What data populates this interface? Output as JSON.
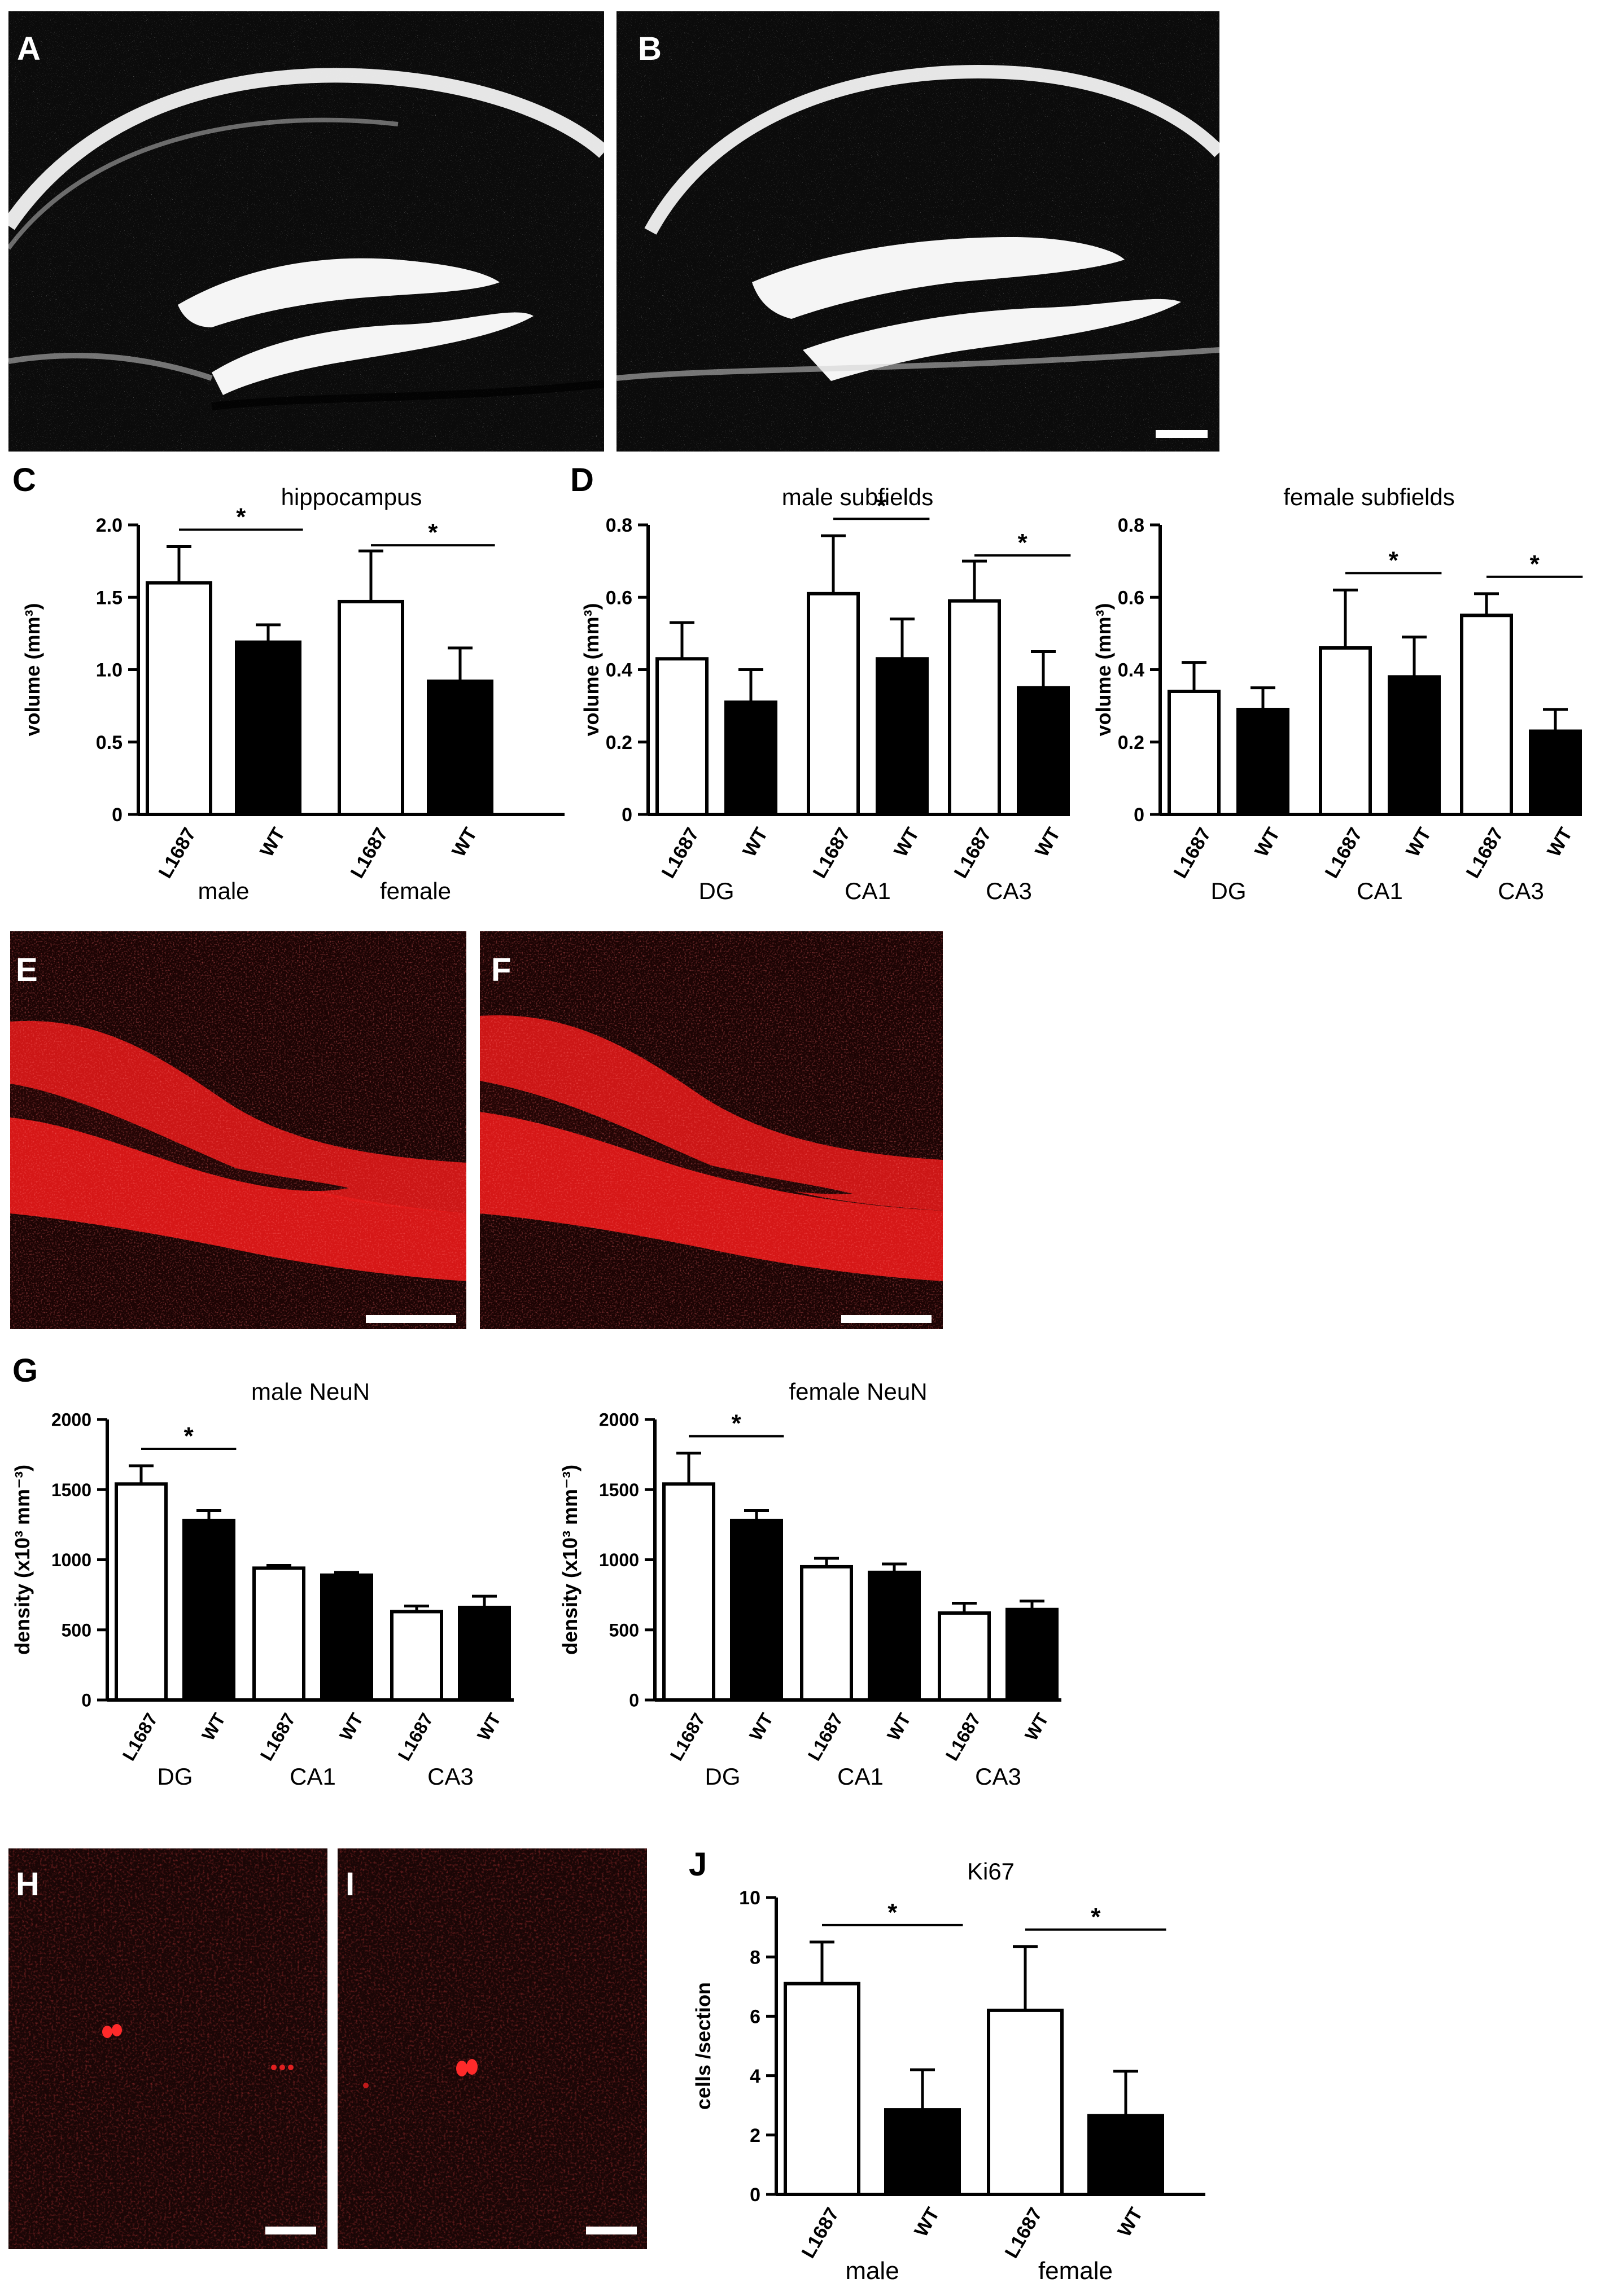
{
  "panels": {
    "A": "A",
    "B": "B",
    "C": "C",
    "D": "D",
    "E": "E",
    "F": "F",
    "G": "G",
    "H": "H",
    "I": "I",
    "J": "J"
  },
  "colors": {
    "dapi_bg": "#0b0b0b",
    "neun_red": "#e01818",
    "ki67_bg": "#1a0606",
    "bar_black": "#000000",
    "bar_white": "#ffffff"
  },
  "chart_data": [
    {
      "id": "C",
      "type": "bar",
      "title": "hippocampus",
      "ylabel": "volume (mm³)",
      "ylim": [
        0,
        2.0
      ],
      "yticks": [
        "0",
        "0.5",
        "1.0",
        "1.5",
        "2.0"
      ],
      "categories": [
        "L1687",
        "WT",
        "L1687",
        "WT"
      ],
      "groups": [
        "male",
        "female"
      ],
      "values": [
        1.6,
        1.19,
        1.47,
        0.92
      ],
      "errors": [
        0.25,
        0.12,
        0.35,
        0.23
      ],
      "fill": [
        "white",
        "black",
        "white",
        "black"
      ],
      "significance": [
        "*",
        "*"
      ]
    },
    {
      "id": "D1",
      "type": "bar",
      "title": "male subfields",
      "ylabel": "volume (mm³)",
      "ylim": [
        0,
        0.8
      ],
      "yticks": [
        "0",
        "0.2",
        "0.4",
        "0.6",
        "0.8"
      ],
      "categories": [
        "L1687",
        "WT",
        "L1687",
        "WT",
        "L1687",
        "WT"
      ],
      "groups": [
        "DG",
        "CA1",
        "CA3"
      ],
      "values": [
        0.43,
        0.31,
        0.61,
        0.43,
        0.59,
        0.35
      ],
      "errors": [
        0.1,
        0.09,
        0.16,
        0.11,
        0.11,
        0.1
      ],
      "fill": [
        "white",
        "black",
        "white",
        "black",
        "white",
        "black"
      ],
      "significance": [
        "*",
        "*"
      ]
    },
    {
      "id": "D2",
      "type": "bar",
      "title": "female subfields",
      "ylabel": "volume (mm³)",
      "ylim": [
        0,
        0.8
      ],
      "yticks": [
        "0",
        "0.2",
        "0.4",
        "0.6",
        "0.8"
      ],
      "categories": [
        "L1687",
        "WT",
        "L1687",
        "WT",
        "L1687",
        "WT"
      ],
      "groups": [
        "DG",
        "CA1",
        "CA3"
      ],
      "values": [
        0.34,
        0.29,
        0.46,
        0.38,
        0.55,
        0.23
      ],
      "errors": [
        0.08,
        0.06,
        0.16,
        0.11,
        0.06,
        0.06
      ],
      "fill": [
        "white",
        "black",
        "white",
        "black",
        "white",
        "black"
      ],
      "significance": [
        "*",
        "*"
      ]
    },
    {
      "id": "G1",
      "type": "bar",
      "title": "male NeuN",
      "ylabel": "density (x10³ mm⁻³)",
      "ylim": [
        0,
        2000
      ],
      "yticks": [
        "0",
        "500",
        "1000",
        "1500",
        "2000"
      ],
      "categories": [
        "L1687",
        "WT",
        "L1687",
        "WT",
        "L1687",
        "WT"
      ],
      "groups": [
        "DG",
        "CA1",
        "CA3"
      ],
      "values": [
        1540,
        1280,
        940,
        890,
        630,
        660
      ],
      "errors": [
        130,
        70,
        20,
        20,
        40,
        80
      ],
      "fill": [
        "white",
        "black",
        "white",
        "black",
        "white",
        "black"
      ],
      "significance": [
        "*"
      ]
    },
    {
      "id": "G2",
      "type": "bar",
      "title": "female NeuN",
      "ylabel": "density (x10³ mm⁻³)",
      "ylim": [
        0,
        2000
      ],
      "yticks": [
        "0",
        "500",
        "1000",
        "1500",
        "2000"
      ],
      "categories": [
        "L1687",
        "WT",
        "L1687",
        "WT",
        "L1687",
        "WT"
      ],
      "groups": [
        "DG",
        "CA1",
        "CA3"
      ],
      "values": [
        1540,
        1280,
        950,
        910,
        620,
        645
      ],
      "errors": [
        220,
        70,
        60,
        60,
        70,
        60
      ],
      "fill": [
        "white",
        "black",
        "white",
        "black",
        "white",
        "black"
      ],
      "significance": [
        "*"
      ]
    },
    {
      "id": "J",
      "type": "bar",
      "title": "Ki67",
      "ylabel": "cells /section",
      "ylim": [
        0,
        10
      ],
      "yticks": [
        "0",
        "2",
        "4",
        "6",
        "8",
        "10"
      ],
      "categories": [
        "L1687",
        "WT",
        "L1687",
        "WT"
      ],
      "groups": [
        "male",
        "female"
      ],
      "values": [
        7.1,
        2.85,
        6.2,
        2.65
      ],
      "errors": [
        1.4,
        1.35,
        2.15,
        1.5
      ],
      "fill": [
        "white",
        "black",
        "white",
        "black"
      ],
      "significance": [
        "*",
        "*"
      ]
    }
  ]
}
